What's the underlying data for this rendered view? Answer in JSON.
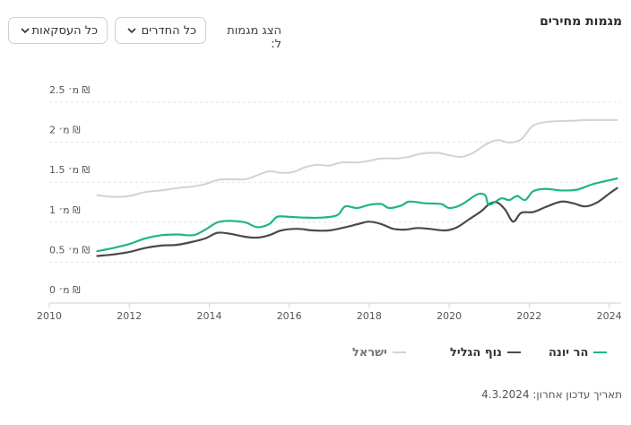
{
  "header": {
    "title": "מגמות מחירים",
    "filter_label": "הצג מגמות ל:",
    "rooms_dropdown": "כל החדרים",
    "deals_dropdown": "כל העסקאות"
  },
  "footer": {
    "last_updated": "תאריך עדכון אחרון: 4.3.2024"
  },
  "chart_data": {
    "type": "line",
    "title": "מגמות מחירים",
    "x_ticks": [
      "2010",
      "2012",
      "2014",
      "2016",
      "2018",
      "2020",
      "2022",
      "2024"
    ],
    "y_ticks": [
      "0 מ׳ ₪",
      "0.5 מ׳ ₪",
      "1 מ׳ ₪",
      "1.5 מ׳ ₪",
      "2 מ׳ ₪",
      "2.5 מ׳ ₪"
    ],
    "xlim": [
      2010,
      2024.3
    ],
    "ylim": [
      0,
      2.5
    ],
    "grid": true,
    "legend_position": "bottom",
    "series": [
      {
        "name": "הר יונה",
        "color": "#1fb77a",
        "points": [
          [
            2011.2,
            0.48
          ],
          [
            2011.6,
            0.52
          ],
          [
            2012.0,
            0.57
          ],
          [
            2012.4,
            0.64
          ],
          [
            2012.8,
            0.68
          ],
          [
            2013.2,
            0.69
          ],
          [
            2013.6,
            0.68
          ],
          [
            2013.9,
            0.75
          ],
          [
            2014.2,
            0.84
          ],
          [
            2014.5,
            0.86
          ],
          [
            2014.9,
            0.84
          ],
          [
            2015.2,
            0.78
          ],
          [
            2015.5,
            0.82
          ],
          [
            2015.7,
            0.91
          ],
          [
            2016.0,
            0.91
          ],
          [
            2016.4,
            0.9
          ],
          [
            2016.8,
            0.9
          ],
          [
            2017.2,
            0.93
          ],
          [
            2017.4,
            1.04
          ],
          [
            2017.7,
            1.02
          ],
          [
            2018.0,
            1.06
          ],
          [
            2018.3,
            1.07
          ],
          [
            2018.5,
            1.02
          ],
          [
            2018.8,
            1.05
          ],
          [
            2019.0,
            1.1
          ],
          [
            2019.4,
            1.08
          ],
          [
            2019.8,
            1.07
          ],
          [
            2020.0,
            1.02
          ],
          [
            2020.3,
            1.06
          ],
          [
            2020.7,
            1.19
          ],
          [
            2020.9,
            1.18
          ],
          [
            2021.0,
            1.06
          ],
          [
            2021.3,
            1.14
          ],
          [
            2021.5,
            1.12
          ],
          [
            2021.7,
            1.17
          ],
          [
            2021.9,
            1.12
          ],
          [
            2022.1,
            1.23
          ],
          [
            2022.4,
            1.26
          ],
          [
            2022.8,
            1.24
          ],
          [
            2023.2,
            1.25
          ],
          [
            2023.6,
            1.32
          ],
          [
            2024.2,
            1.39
          ]
        ]
      },
      {
        "name": "נוף הגליל",
        "color": "#4a4a4a",
        "points": [
          [
            2011.2,
            0.42
          ],
          [
            2011.6,
            0.44
          ],
          [
            2012.0,
            0.47
          ],
          [
            2012.4,
            0.52
          ],
          [
            2012.8,
            0.55
          ],
          [
            2013.2,
            0.56
          ],
          [
            2013.6,
            0.6
          ],
          [
            2013.9,
            0.64
          ],
          [
            2014.2,
            0.71
          ],
          [
            2014.5,
            0.7
          ],
          [
            2014.9,
            0.66
          ],
          [
            2015.2,
            0.65
          ],
          [
            2015.5,
            0.68
          ],
          [
            2015.8,
            0.74
          ],
          [
            2016.2,
            0.76
          ],
          [
            2016.6,
            0.74
          ],
          [
            2017.0,
            0.74
          ],
          [
            2017.4,
            0.78
          ],
          [
            2017.8,
            0.83
          ],
          [
            2018.0,
            0.85
          ],
          [
            2018.3,
            0.82
          ],
          [
            2018.6,
            0.76
          ],
          [
            2018.9,
            0.75
          ],
          [
            2019.2,
            0.77
          ],
          [
            2019.5,
            0.76
          ],
          [
            2019.9,
            0.74
          ],
          [
            2020.2,
            0.78
          ],
          [
            2020.5,
            0.88
          ],
          [
            2020.8,
            0.98
          ],
          [
            2021.0,
            1.07
          ],
          [
            2021.2,
            1.09
          ],
          [
            2021.4,
            1.0
          ],
          [
            2021.6,
            0.85
          ],
          [
            2021.8,
            0.96
          ],
          [
            2022.1,
            0.97
          ],
          [
            2022.4,
            1.03
          ],
          [
            2022.8,
            1.1
          ],
          [
            2023.1,
            1.08
          ],
          [
            2023.4,
            1.04
          ],
          [
            2023.7,
            1.09
          ],
          [
            2024.0,
            1.2
          ],
          [
            2024.2,
            1.27
          ]
        ]
      },
      {
        "name": "ישראל",
        "color": "#d2d2d2",
        "points": [
          [
            2011.2,
            1.18
          ],
          [
            2011.6,
            1.16
          ],
          [
            2012.0,
            1.17
          ],
          [
            2012.4,
            1.22
          ],
          [
            2012.8,
            1.24
          ],
          [
            2013.2,
            1.27
          ],
          [
            2013.6,
            1.29
          ],
          [
            2013.9,
            1.32
          ],
          [
            2014.2,
            1.37
          ],
          [
            2014.5,
            1.38
          ],
          [
            2014.9,
            1.38
          ],
          [
            2015.2,
            1.43
          ],
          [
            2015.5,
            1.48
          ],
          [
            2015.8,
            1.46
          ],
          [
            2016.1,
            1.47
          ],
          [
            2016.4,
            1.53
          ],
          [
            2016.7,
            1.56
          ],
          [
            2017.0,
            1.55
          ],
          [
            2017.3,
            1.59
          ],
          [
            2017.7,
            1.59
          ],
          [
            2018.0,
            1.61
          ],
          [
            2018.3,
            1.64
          ],
          [
            2018.7,
            1.64
          ],
          [
            2019.0,
            1.66
          ],
          [
            2019.3,
            1.7
          ],
          [
            2019.7,
            1.71
          ],
          [
            2020.0,
            1.68
          ],
          [
            2020.3,
            1.66
          ],
          [
            2020.6,
            1.71
          ],
          [
            2020.9,
            1.81
          ],
          [
            2021.2,
            1.87
          ],
          [
            2021.5,
            1.84
          ],
          [
            2021.8,
            1.88
          ],
          [
            2022.1,
            2.05
          ],
          [
            2022.5,
            2.1
          ],
          [
            2023.0,
            2.11
          ],
          [
            2023.5,
            2.12
          ],
          [
            2024.2,
            2.12
          ]
        ]
      }
    ]
  }
}
